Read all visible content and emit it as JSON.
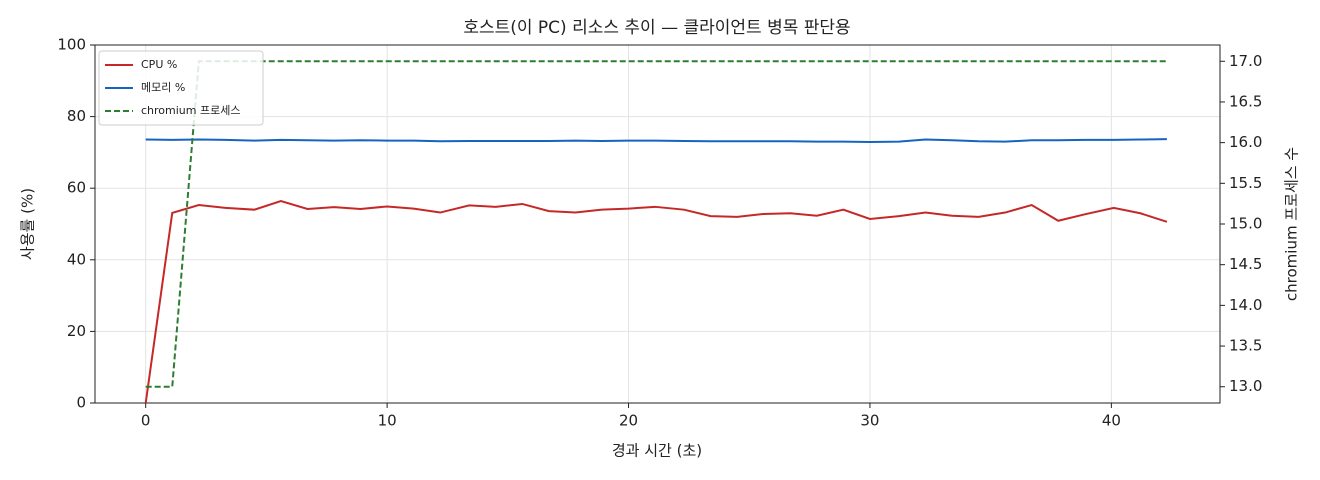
{
  "chart_data": {
    "type": "line",
    "title": "호스트(이 PC) 리소스 추이 — 클라이언트 병목 판단용",
    "x_label": "경과 시간 (초)",
    "y_label": "사용률 (%)",
    "y2_label": "chromium 프로세스 수",
    "x": [
      0,
      1.1,
      2.2,
      3.3,
      4.5,
      5.6,
      6.7,
      7.8,
      8.9,
      10.0,
      11.1,
      12.2,
      13.4,
      14.5,
      15.6,
      16.7,
      17.8,
      18.9,
      20.0,
      21.1,
      22.3,
      23.4,
      24.5,
      25.6,
      26.7,
      27.8,
      28.9,
      30.0,
      31.2,
      32.3,
      33.4,
      34.5,
      35.6,
      36.7,
      37.8,
      38.9,
      40.1,
      41.2,
      42.3
    ],
    "series": [
      {
        "name": "CPU %",
        "color": "#c62828",
        "linestyle": "solid",
        "values": [
          0,
          53.1,
          55.3,
          54.5,
          54.0,
          56.4,
          54.2,
          54.7,
          54.2,
          54.9,
          54.3,
          53.2,
          55.2,
          54.8,
          55.6,
          53.6,
          53.2,
          54.0,
          54.3,
          54.8,
          54.0,
          52.2,
          52.0,
          52.8,
          53.0,
          52.3,
          54.0,
          51.4,
          52.2,
          53.2,
          52.3,
          52.0,
          53.2,
          55.3,
          50.9,
          52.7,
          54.5,
          53.0,
          50.6
        ]
      },
      {
        "name": "메모리 %",
        "color": "#1565c0",
        "linestyle": "solid",
        "values": [
          73.6,
          73.5,
          73.6,
          73.5,
          73.3,
          73.5,
          73.4,
          73.3,
          73.4,
          73.3,
          73.3,
          73.1,
          73.2,
          73.2,
          73.2,
          73.2,
          73.3,
          73.2,
          73.3,
          73.3,
          73.2,
          73.1,
          73.1,
          73.1,
          73.1,
          73.0,
          73.0,
          72.9,
          73.0,
          73.6,
          73.4,
          73.1,
          73.0,
          73.4,
          73.4,
          73.5,
          73.5,
          73.6,
          73.7
        ]
      },
      {
        "name": "chromium 프로세스",
        "color": "#2e7d32",
        "linestyle": "dashed",
        "axis": "y2",
        "values": [
          13,
          13,
          17,
          17,
          17,
          17,
          17,
          17,
          17,
          17,
          17,
          17,
          17,
          17,
          17,
          17,
          17,
          17,
          17,
          17,
          17,
          17,
          17,
          17,
          17,
          17,
          17,
          17,
          17,
          17,
          17,
          17,
          17,
          17,
          17,
          17,
          17,
          17,
          17
        ]
      }
    ],
    "xlim": [
      -2.1,
      44.5
    ],
    "xticks": [
      0,
      10,
      20,
      30,
      40
    ],
    "ylim": [
      0,
      100
    ],
    "yticks": [
      0,
      20,
      40,
      60,
      80,
      100
    ],
    "y2lim": [
      12.8,
      17.2
    ],
    "y2ticks": [
      {
        "value": 13,
        "label": "13.0"
      },
      13.5,
      {
        "value": 14,
        "label": "14.0"
      },
      14.5,
      {
        "value": 15,
        "label": "15.0"
      },
      15.5,
      {
        "value": 16,
        "label": "16.0"
      },
      16.5,
      {
        "value": 17,
        "label": "17.0"
      }
    ],
    "grid": true,
    "legend": "upper left"
  }
}
